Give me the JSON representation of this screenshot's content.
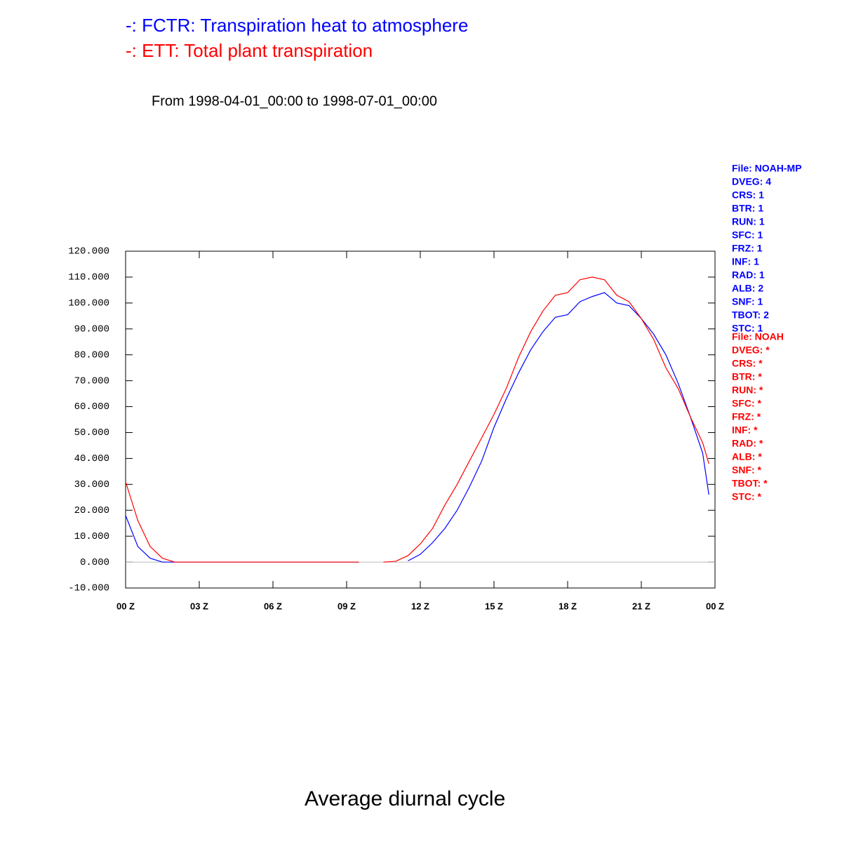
{
  "chart_data": {
    "type": "line",
    "title": "Average diurnal cycle",
    "subtitle": "From 1998-04-01_00:00 to 1998-07-01_00:00",
    "x": [
      0,
      0.5,
      1,
      1.5,
      2,
      2.5,
      3,
      3.5,
      4,
      4.5,
      5,
      5.5,
      6,
      6.5,
      7,
      7.5,
      8,
      8.5,
      9,
      9.5,
      10,
      10.5,
      11,
      11.5,
      12,
      12.5,
      13,
      13.5,
      14,
      14.5,
      15,
      15.5,
      16,
      16.5,
      17,
      17.5,
      18,
      18.5,
      19,
      19.5,
      20,
      20.5,
      21,
      21.5,
      22,
      22.5,
      23,
      23.5,
      23.75
    ],
    "series": [
      {
        "name": "-: FCTR: Transpiration heat to atmosphere",
        "color": "#0000ff",
        "values": [
          18,
          6,
          1.5,
          0,
          0,
          0,
          0,
          0,
          0,
          0,
          0,
          0,
          0,
          0,
          0,
          0,
          0,
          0,
          0,
          0,
          null,
          null,
          null,
          0.5,
          3,
          7.5,
          13,
          20,
          29,
          39,
          52,
          63,
          73,
          82,
          89,
          94.5,
          95.5,
          100.5,
          102.5,
          104,
          100,
          99,
          94,
          88,
          80,
          69,
          56,
          42,
          26
        ]
      },
      {
        "name": "-: ETT: Total plant transpiration",
        "color": "#ff0000",
        "values": [
          31,
          16,
          6,
          1.5,
          0,
          0,
          0,
          0,
          0,
          0,
          0,
          0,
          0,
          0,
          0,
          0,
          0,
          0,
          0,
          0,
          null,
          0,
          0.3,
          2.5,
          7,
          13,
          22,
          30,
          39,
          48,
          57,
          67,
          79,
          89,
          97,
          103,
          104,
          109,
          110,
          109,
          103,
          100.5,
          94,
          86,
          75,
          67,
          56,
          46,
          38
        ]
      }
    ],
    "xlim": [
      0,
      24
    ],
    "xticks": [
      {
        "value": 0,
        "label": "00 Z"
      },
      {
        "value": 3,
        "label": "03 Z"
      },
      {
        "value": 6,
        "label": "06 Z"
      },
      {
        "value": 9,
        "label": "09 Z"
      },
      {
        "value": 12,
        "label": "12 Z"
      },
      {
        "value": 15,
        "label": "15 Z"
      },
      {
        "value": 18,
        "label": "18 Z"
      },
      {
        "value": 21,
        "label": "21 Z"
      },
      {
        "value": 24,
        "label": "00 Z"
      }
    ],
    "ylim": [
      -10,
      120
    ],
    "yticks": [
      {
        "value": -10,
        "label": "-10.000"
      },
      {
        "value": 0,
        "label": "0.000"
      },
      {
        "value": 10,
        "label": "10.000"
      },
      {
        "value": 20,
        "label": "20.000"
      },
      {
        "value": 30,
        "label": "30.000"
      },
      {
        "value": 40,
        "label": "40.000"
      },
      {
        "value": 50,
        "label": "50.000"
      },
      {
        "value": 60,
        "label": "60.000"
      },
      {
        "value": 70,
        "label": "70.000"
      },
      {
        "value": 80,
        "label": "80.000"
      },
      {
        "value": 90,
        "label": "90.000"
      },
      {
        "value": 100,
        "label": "100.000"
      },
      {
        "value": 110,
        "label": "110.000"
      },
      {
        "value": 120,
        "label": "120.000"
      }
    ],
    "reference_line": 0,
    "annotations": [
      {
        "color": "#0000ff",
        "lines": [
          "File: NOAH-MP",
          "DVEG: 4",
          "CRS: 1",
          "BTR: 1",
          "RUN: 1",
          "SFC: 1",
          "FRZ: 1",
          "INF: 1",
          "RAD: 1",
          "ALB: 2",
          "SNF: 1",
          "TBOT: 2",
          "STC: 1"
        ]
      },
      {
        "color": "#ff0000",
        "lines": [
          "File: NOAH",
          "DVEG: *",
          "CRS: *",
          "BTR: *",
          "RUN: *",
          "SFC: *",
          "FRZ: *",
          "INF: *",
          "RAD: *",
          "ALB: *",
          "SNF: *",
          "TBOT: *",
          "STC: *"
        ]
      }
    ]
  }
}
